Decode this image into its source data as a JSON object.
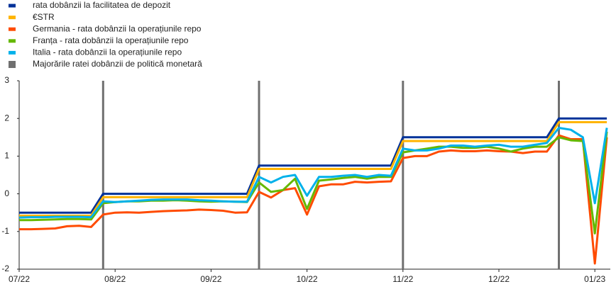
{
  "chart_data": {
    "type": "line",
    "categories": [
      "07/22",
      null,
      null,
      null,
      null,
      null,
      null,
      null,
      "08/22",
      null,
      null,
      null,
      null,
      null,
      null,
      null,
      "09/22",
      null,
      null,
      null,
      null,
      null,
      null,
      null,
      "10/22",
      null,
      null,
      null,
      null,
      null,
      null,
      null,
      "11/22",
      null,
      null,
      null,
      null,
      null,
      null,
      null,
      "12/22",
      null,
      null,
      null,
      null,
      null,
      null,
      null,
      "01/23",
      null
    ],
    "series": [
      {
        "name": "rata dobânzii la facilitatea de depozit",
        "color": "#003299",
        "values": [
          -0.5,
          -0.5,
          -0.5,
          -0.5,
          -0.5,
          -0.5,
          -0.5,
          0,
          0,
          0,
          0,
          0,
          0,
          0,
          0,
          0,
          0,
          0,
          0,
          0,
          0.75,
          0.75,
          0.75,
          0.75,
          0.75,
          0.75,
          0.75,
          0.75,
          0.75,
          0.75,
          0.75,
          0.75,
          1.5,
          1.5,
          1.5,
          1.5,
          1.5,
          1.5,
          1.5,
          1.5,
          1.5,
          1.5,
          1.5,
          1.5,
          1.5,
          2,
          2,
          2,
          2,
          2
        ]
      },
      {
        "name": "€STR",
        "color": "#ffb400",
        "values": [
          -0.58,
          -0.58,
          -0.58,
          -0.58,
          -0.58,
          -0.58,
          -0.58,
          -0.09,
          -0.09,
          -0.09,
          -0.09,
          -0.09,
          -0.09,
          -0.09,
          -0.09,
          -0.09,
          -0.09,
          -0.09,
          -0.09,
          -0.09,
          0.66,
          0.66,
          0.66,
          0.66,
          0.66,
          0.66,
          0.66,
          0.66,
          0.66,
          0.66,
          0.66,
          0.66,
          1.4,
          1.4,
          1.4,
          1.4,
          1.4,
          1.4,
          1.4,
          1.4,
          1.4,
          1.4,
          1.4,
          1.4,
          1.4,
          1.9,
          1.9,
          1.9,
          1.9,
          1.9
        ]
      },
      {
        "name": "Germania - rata dobânzii la operațiunile repo",
        "color": "#ff4b00",
        "values": [
          -0.94,
          -0.94,
          -0.93,
          -0.92,
          -0.86,
          -0.85,
          -0.88,
          -0.55,
          -0.5,
          -0.49,
          -0.5,
          -0.48,
          -0.46,
          -0.45,
          -0.44,
          -0.42,
          -0.43,
          -0.45,
          -0.5,
          -0.49,
          0.05,
          -0.1,
          0.1,
          0.15,
          -0.55,
          0.2,
          0.25,
          0.25,
          0.32,
          0.3,
          0.32,
          0.33,
          0.95,
          1.0,
          1.0,
          1.12,
          1.15,
          1.13,
          1.13,
          1.15,
          1.13,
          1.12,
          1.08,
          1.12,
          1.12,
          1.55,
          1.45,
          1.45,
          -1.85,
          1.5
        ]
      },
      {
        "name": "Franța - rata dobânzii la operațiunile repo",
        "color": "#65b800",
        "values": [
          -0.7,
          -0.7,
          -0.69,
          -0.68,
          -0.67,
          -0.67,
          -0.68,
          -0.25,
          -0.22,
          -0.2,
          -0.2,
          -0.18,
          -0.18,
          -0.17,
          -0.18,
          -0.2,
          -0.21,
          -0.2,
          -0.21,
          -0.22,
          0.3,
          0.05,
          0.1,
          0.4,
          -0.4,
          0.35,
          0.38,
          0.42,
          0.45,
          0.4,
          0.45,
          0.45,
          1.1,
          1.15,
          1.2,
          1.25,
          1.25,
          1.22,
          1.22,
          1.25,
          1.2,
          1.12,
          1.2,
          1.25,
          1.25,
          1.5,
          1.42,
          1.4,
          -1.05,
          1.65
        ]
      },
      {
        "name": "Italia - rata dobânzii la operațiunile repo",
        "color": "#00b1ea",
        "values": [
          -0.63,
          -0.62,
          -0.62,
          -0.61,
          -0.61,
          -0.61,
          -0.62,
          -0.2,
          -0.22,
          -0.2,
          -0.18,
          -0.16,
          -0.15,
          -0.15,
          -0.15,
          -0.17,
          -0.18,
          -0.2,
          -0.21,
          -0.21,
          0.45,
          0.3,
          0.45,
          0.5,
          -0.05,
          0.45,
          0.45,
          0.48,
          0.5,
          0.45,
          0.5,
          0.48,
          1.2,
          1.15,
          1.15,
          1.2,
          1.28,
          1.28,
          1.25,
          1.28,
          1.3,
          1.25,
          1.25,
          1.3,
          1.35,
          1.75,
          1.7,
          1.5,
          -0.25,
          1.75
        ]
      }
    ],
    "policy_hikes": {
      "name": "Majorările ratei dobânzii de politică monetară",
      "color": "#707070",
      "category_indices": [
        7,
        20,
        32,
        45
      ]
    },
    "ylim": [
      -2,
      3
    ],
    "yticks": [
      -2,
      -1,
      0,
      1,
      2,
      3
    ],
    "grid": false,
    "legend": "top-left"
  }
}
